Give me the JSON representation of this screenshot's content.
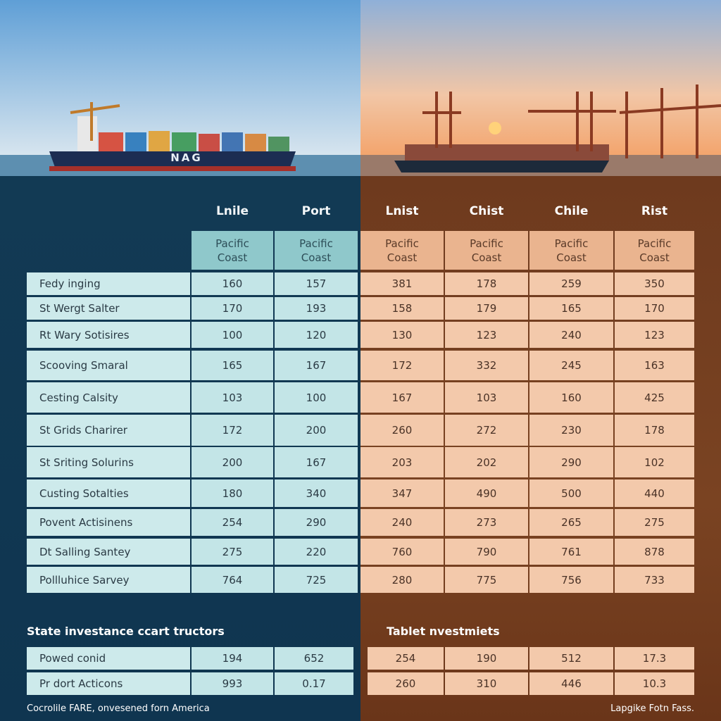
{
  "photo": {
    "ship_label": "NAG"
  },
  "table": {
    "columns": [
      "Lnile",
      "Port",
      "Lnist",
      "Chist",
      "Chile",
      "Rist"
    ],
    "subheaders": [
      "Pacific Coast",
      "Pacific Coast",
      "Pacific Coast",
      "Pacific Coast",
      "Pacific Coast",
      "Pacific Coast"
    ],
    "rows": [
      {
        "label": "Fedy inging",
        "values": [
          "160",
          "157",
          "381",
          "178",
          "259",
          "350"
        ]
      },
      {
        "label": "St Wergt Salter",
        "values": [
          "170",
          "193",
          "158",
          "179",
          "165",
          "170"
        ]
      },
      {
        "label": "Rt Wary Sotisires",
        "values": [
          "100",
          "120",
          "130",
          "123",
          "240",
          "123"
        ]
      },
      {
        "label": "Scooving Smaral",
        "values": [
          "165",
          "167",
          "172",
          "332",
          "245",
          "163"
        ]
      },
      {
        "label": "Cesting Calsity",
        "values": [
          "103",
          "100",
          "167",
          "103",
          "160",
          "425"
        ]
      },
      {
        "label": "St Grids Charirer",
        "values": [
          "172",
          "200",
          "260",
          "272",
          "230",
          "178"
        ]
      },
      {
        "label": "St Sriting Solurins",
        "values": [
          "200",
          "167",
          "203",
          "202",
          "290",
          "102"
        ]
      },
      {
        "label": "Custing Sotalties",
        "values": [
          "180",
          "340",
          "347",
          "490",
          "500",
          "440"
        ]
      },
      {
        "label": "Povent Actisinens",
        "values": [
          "254",
          "290",
          "240",
          "273",
          "265",
          "275"
        ]
      },
      {
        "label": "Dt Salling Santey",
        "values": [
          "275",
          "220",
          "760",
          "790",
          "761",
          "878"
        ]
      },
      {
        "label": "Pollluhice Sarvey",
        "values": [
          "764",
          "725",
          "280",
          "775",
          "756",
          "733"
        ]
      }
    ]
  },
  "summary": {
    "left_title": "State investance ccart tructors",
    "right_title": "Tablet nvestmiets",
    "rows": [
      {
        "label": "Powed conid",
        "values": [
          "194",
          "652",
          "254",
          "190",
          "512",
          "17.3"
        ]
      },
      {
        "label": "Pr dort Acticons",
        "values": [
          "993",
          "0.17",
          "260",
          "310",
          "446",
          "10.3"
        ]
      }
    ]
  },
  "footer": {
    "left": "Cocrolile FARE, onvesened forn America",
    "right": "Lapgike Fotn Fass."
  }
}
